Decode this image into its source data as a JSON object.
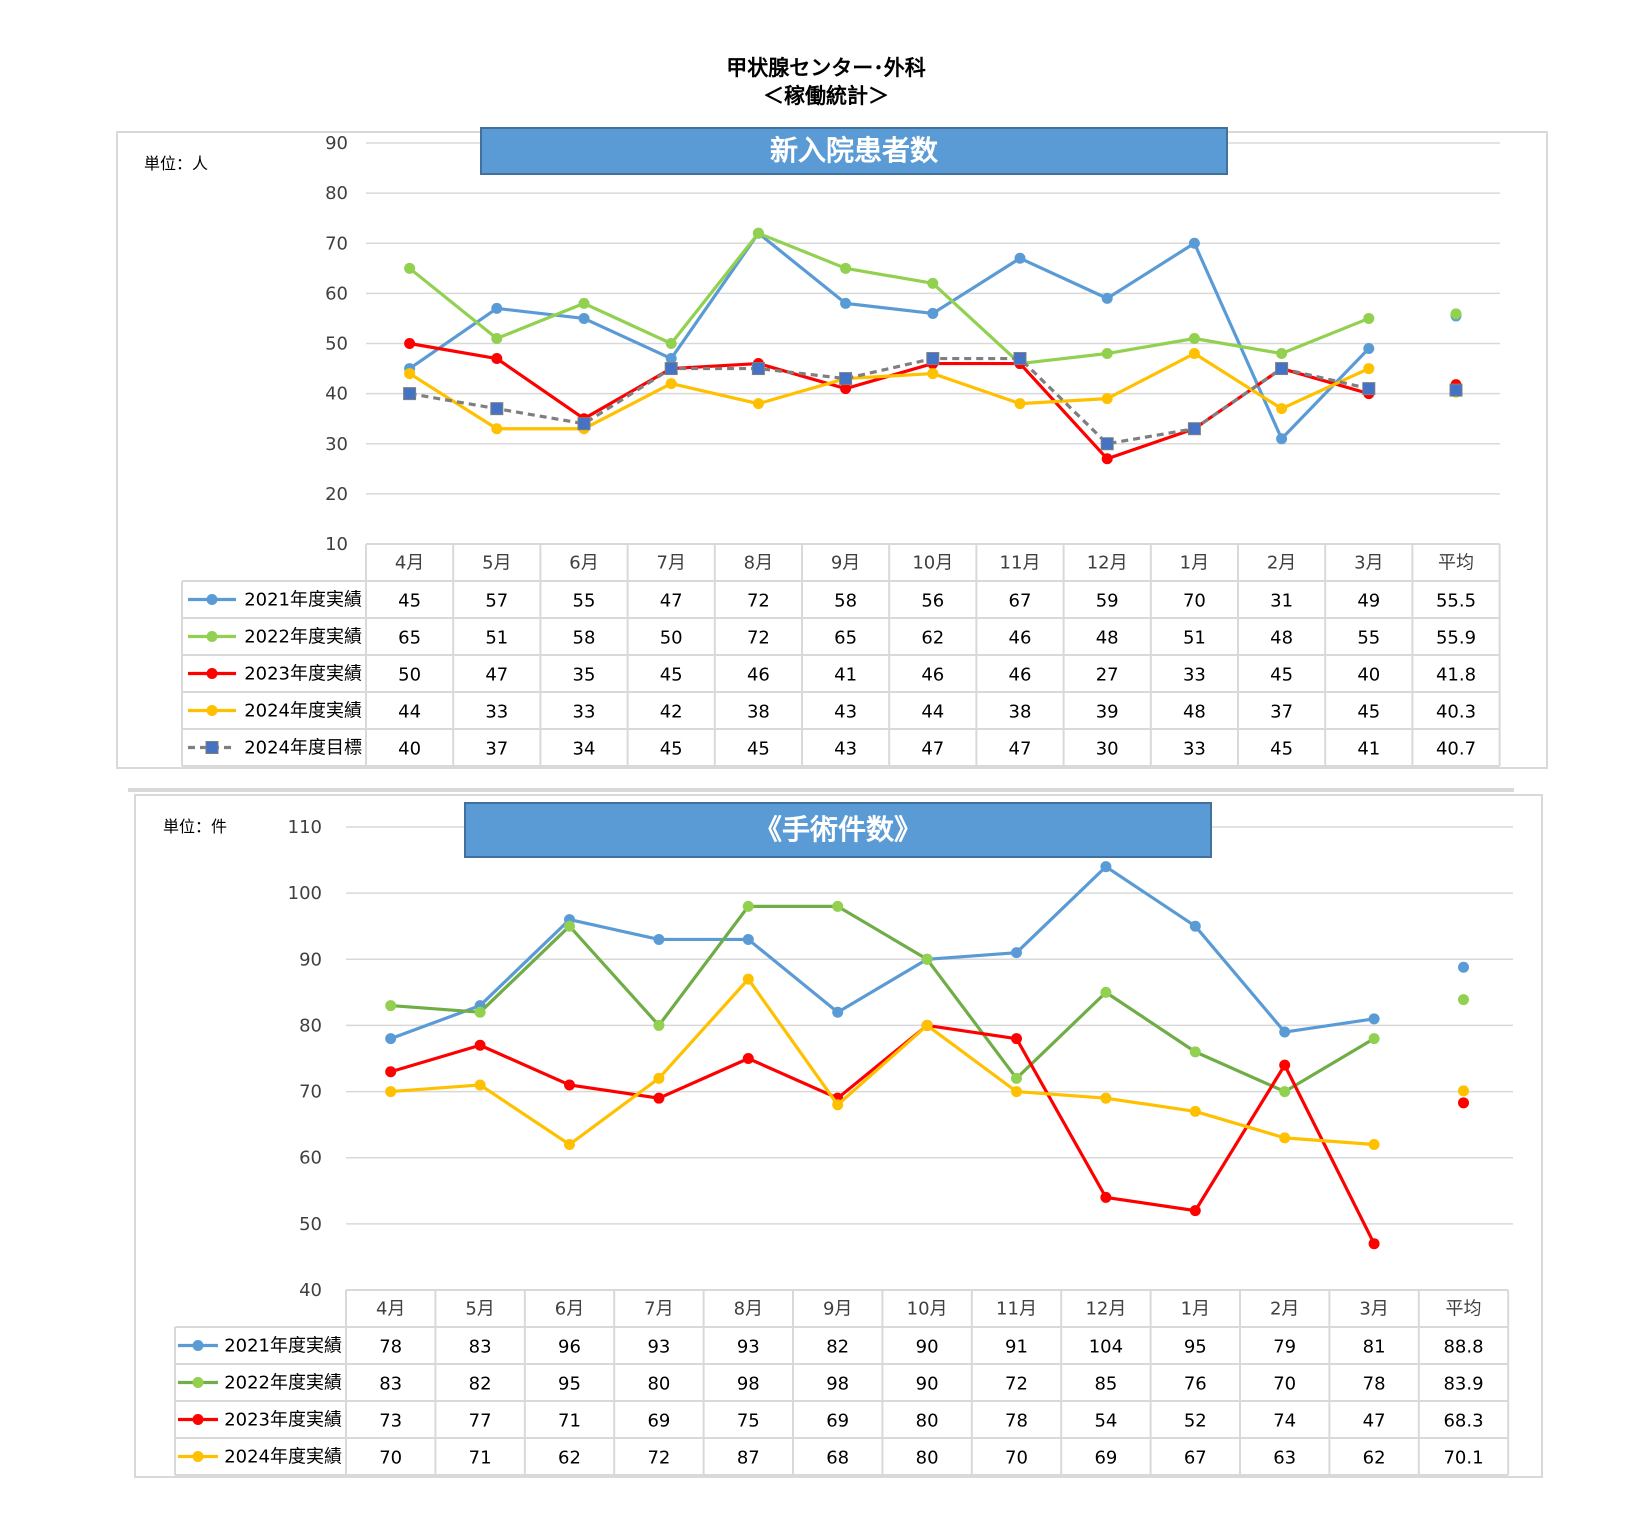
{
  "page": {
    "title_line1": "甲状腺センター･外科",
    "title_line2": "＜稼働統計＞"
  },
  "chart_data": [
    {
      "type": "line",
      "title": "新入院患者数",
      "unit_label": "単位：人",
      "categories": [
        "4月",
        "5月",
        "6月",
        "7月",
        "8月",
        "9月",
        "10月",
        "11月",
        "12月",
        "1月",
        "2月",
        "3月"
      ],
      "average_label": "平均",
      "ylim": [
        10,
        90
      ],
      "yticks": [
        10,
        20,
        30,
        40,
        50,
        60,
        70,
        80,
        90
      ],
      "grid": true,
      "series": [
        {
          "name": "2021年度実績",
          "color": "#5b9bd5",
          "marker": "circle",
          "dashed": false,
          "values": [
            45,
            57,
            55,
            47,
            72,
            58,
            56,
            67,
            59,
            70,
            31,
            49
          ],
          "average": 55.5
        },
        {
          "name": "2022年度実績",
          "color": "#92d050",
          "marker": "circle",
          "dashed": false,
          "values": [
            65,
            51,
            58,
            50,
            72,
            65,
            62,
            46,
            48,
            51,
            48,
            55
          ],
          "average": 55.9
        },
        {
          "name": "2023年度実績",
          "color": "#ff0000",
          "marker": "circle",
          "dashed": false,
          "values": [
            50,
            47,
            35,
            45,
            46,
            41,
            46,
            46,
            27,
            33,
            45,
            40
          ],
          "average": 41.8
        },
        {
          "name": "2024年度実績",
          "color": "#ffc000",
          "marker": "circle",
          "dashed": false,
          "values": [
            44,
            33,
            33,
            42,
            38,
            43,
            44,
            38,
            39,
            48,
            37,
            45
          ],
          "average": 40.3
        },
        {
          "name": "2024年度目標",
          "color": "#7f7f7f",
          "marker": "square",
          "marker_color": "#4472c4",
          "dashed": true,
          "values": [
            40,
            37,
            34,
            45,
            45,
            43,
            47,
            47,
            30,
            33,
            45,
            41
          ],
          "average": 40.7
        }
      ]
    },
    {
      "type": "line",
      "title": "《手術件数》",
      "unit_label": "単位：件",
      "categories": [
        "4月",
        "5月",
        "6月",
        "7月",
        "8月",
        "9月",
        "10月",
        "11月",
        "12月",
        "1月",
        "2月",
        "3月"
      ],
      "average_label": "平均",
      "ylim": [
        40,
        110
      ],
      "yticks": [
        40,
        50,
        60,
        70,
        80,
        90,
        100,
        110
      ],
      "grid": true,
      "series": [
        {
          "name": "2021年度実績",
          "color": "#5b9bd5",
          "marker": "circle",
          "dashed": false,
          "values": [
            78,
            83,
            96,
            93,
            93,
            82,
            90,
            91,
            104,
            95,
            79,
            81
          ],
          "average": 88.8
        },
        {
          "name": "2022年度実績",
          "color": "#70ad47",
          "marker": "circle",
          "marker_color": "#92d050",
          "dashed": false,
          "values": [
            83,
            82,
            95,
            80,
            98,
            98,
            90,
            72,
            85,
            76,
            70,
            78
          ],
          "average": 83.9
        },
        {
          "name": "2023年度実績",
          "color": "#ff0000",
          "marker": "circle",
          "dashed": false,
          "values": [
            73,
            77,
            71,
            69,
            75,
            69,
            80,
            78,
            54,
            52,
            74,
            47
          ],
          "average": 68.3
        },
        {
          "name": "2024年度実績",
          "color": "#ffc000",
          "marker": "circle",
          "dashed": false,
          "values": [
            70,
            71,
            62,
            72,
            87,
            68,
            80,
            70,
            69,
            67,
            63,
            62
          ],
          "average": 70.1
        }
      ]
    }
  ]
}
